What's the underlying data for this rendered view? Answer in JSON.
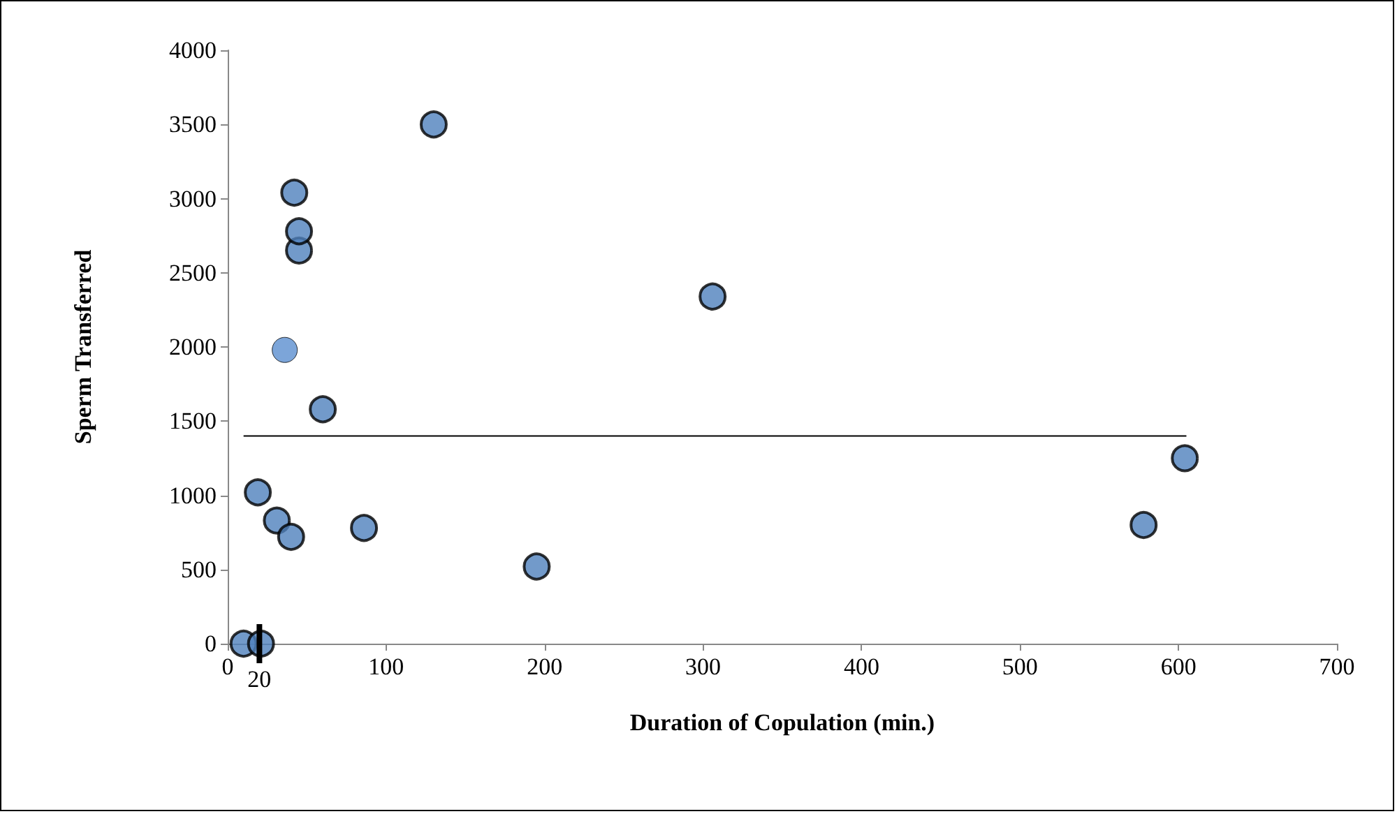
{
  "chart_data": {
    "type": "scatter",
    "xlabel": "Duration of Copulation (min.)",
    "ylabel": "Sperm Transferred",
    "xlim": [
      0,
      700
    ],
    "xticks": [
      0,
      100,
      200,
      300,
      400,
      500,
      600,
      700
    ],
    "ylim": [
      0,
      4000
    ],
    "yticks": [
      0,
      500,
      1000,
      1500,
      2000,
      2500,
      3000,
      3500,
      4000
    ],
    "grid": false,
    "marker": "circle",
    "series": [
      {
        "color": "#4f81bd",
        "x": [
          10,
          21,
          19,
          31,
          40,
          42,
          45,
          45,
          36,
          60,
          86,
          130,
          195,
          306,
          578,
          604
        ],
        "values": [
          0,
          0,
          1020,
          830,
          720,
          3040,
          2650,
          2780,
          1980,
          1580,
          780,
          3500,
          520,
          2340,
          800,
          1250
        ],
        "colors": [
          "#4f81bd",
          "#4f81bd",
          "#4f81bd",
          "#4f81bd",
          "#4f81bd",
          "#4f81bd",
          "#4f81bd",
          "#4f81bd",
          "#5b8fd0",
          "#4f81bd",
          "#4f81bd",
          "#4f81bd",
          "#4f81bd",
          "#4f81bd",
          "#4f81bd",
          "#4f81bd"
        ]
      },
      {
        "type": "line",
        "color": "#000000",
        "marker": "none",
        "x": [
          10,
          605
        ],
        "values": [
          1400,
          1400
        ]
      }
    ],
    "ref_lines": [
      {
        "axis": "x",
        "value": 20,
        "label": "20"
      }
    ]
  }
}
